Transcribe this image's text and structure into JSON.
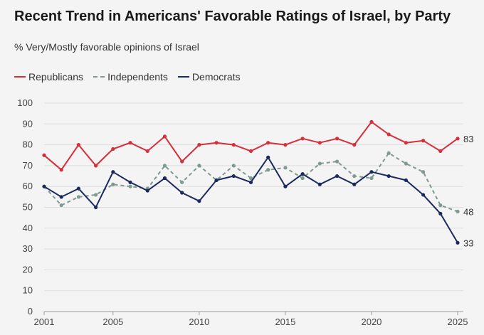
{
  "title": "Recent Trend in Americans' Favorable Ratings of Israel, by Party",
  "subtitle": "% Very/Mostly favorable opinions of Israel",
  "chart_data": {
    "type": "line",
    "x": [
      2001,
      2002,
      2003,
      2004,
      2005,
      2006,
      2007,
      2008,
      2009,
      2010,
      2011,
      2012,
      2013,
      2014,
      2015,
      2016,
      2017,
      2018,
      2019,
      2020,
      2021,
      2022,
      2023,
      2024,
      2025
    ],
    "ylim": [
      0,
      100
    ],
    "xlim": [
      2001,
      2025
    ],
    "y_ticks": [
      0,
      10,
      20,
      30,
      40,
      50,
      60,
      70,
      80,
      90,
      100
    ],
    "x_ticks": [
      2001,
      2005,
      2010,
      2015,
      2020,
      2025
    ],
    "grid": "horizontal",
    "legend_position": "top-left",
    "series": [
      {
        "name": "Republicans",
        "color": "#d62f3a",
        "dash": "solid",
        "values": [
          75,
          68,
          80,
          70,
          78,
          81,
          77,
          84,
          72,
          80,
          81,
          80,
          77,
          81,
          80,
          83,
          81,
          83,
          80,
          91,
          85,
          81,
          82,
          77,
          83
        ],
        "end_label": "83"
      },
      {
        "name": "Independents",
        "color": "#7f9a8e",
        "dash": "dashed",
        "values": [
          60,
          51,
          55,
          56,
          61,
          60,
          59,
          70,
          62,
          70,
          63,
          70,
          64,
          68,
          69,
          64,
          71,
          72,
          65,
          64,
          76,
          71,
          67,
          51,
          48
        ],
        "end_label": "48"
      },
      {
        "name": "Democrats",
        "color": "#1b2a5e",
        "dash": "solid",
        "values": [
          60,
          55,
          59,
          50,
          67,
          62,
          58,
          64,
          57,
          53,
          63,
          65,
          62,
          74,
          60,
          66,
          61,
          65,
          61,
          67,
          65,
          63,
          56,
          47,
          33
        ],
        "end_label": "33"
      }
    ]
  }
}
